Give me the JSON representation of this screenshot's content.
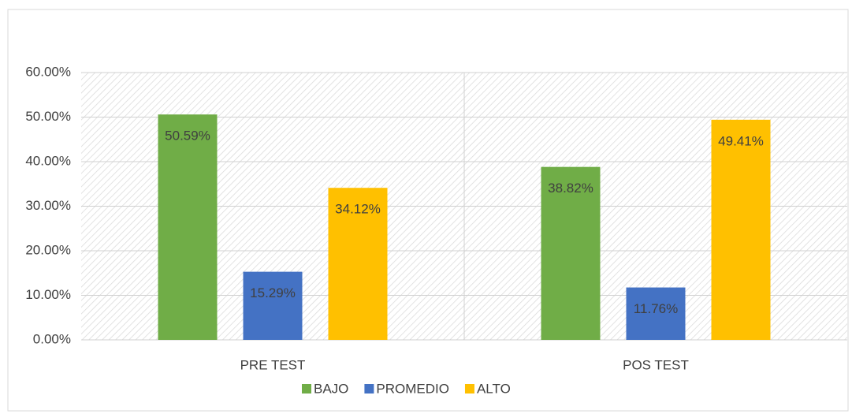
{
  "chart_data": {
    "type": "bar",
    "categories": [
      "PRE TEST",
      "POS TEST"
    ],
    "series": [
      {
        "name": "BAJO",
        "color": "#70ad47",
        "values": [
          50.59,
          38.82
        ],
        "value_labels": [
          "50.59%",
          "38.82%"
        ]
      },
      {
        "name": "PROMEDIO",
        "color": "#4472c4",
        "values": [
          15.29,
          11.76
        ],
        "value_labels": [
          "15.29%",
          "11.76%"
        ]
      },
      {
        "name": "ALTO",
        "color": "#ffc000",
        "values": [
          34.12,
          49.41
        ],
        "value_labels": [
          "34.12%",
          "49.41%"
        ]
      }
    ],
    "ylim": [
      0,
      60
    ],
    "yticks": [
      {
        "value": 0,
        "label": "0.00%"
      },
      {
        "value": 10,
        "label": "10.00%"
      },
      {
        "value": 20,
        "label": "20.00%"
      },
      {
        "value": 30,
        "label": "30.00%"
      },
      {
        "value": 40,
        "label": "40.00%"
      },
      {
        "value": 50,
        "label": "50.00%"
      },
      {
        "value": 60,
        "label": "60.00%"
      }
    ],
    "grid": true,
    "legend": "bottom"
  }
}
